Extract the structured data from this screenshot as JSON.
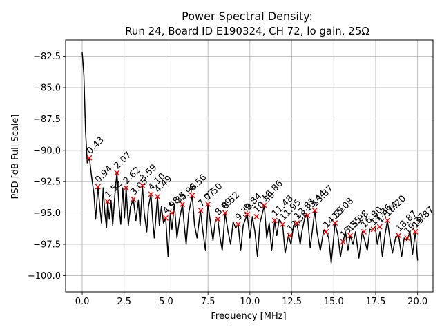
{
  "chart_data": {
    "type": "line",
    "title_line1": "Power Spectral Density:",
    "title_line2": "Run 24, Board ID E190324, CH 72, lo gain, 25Ω",
    "xlabel": "Frequency [MHz]",
    "ylabel": "PSD [dB Full Scale]",
    "xlim": [
      -0.99,
      20.92
    ],
    "ylim": [
      -101.3,
      -81.2
    ],
    "xticks": [
      0.0,
      2.5,
      5.0,
      7.5,
      10.0,
      12.5,
      15.0,
      17.5,
      20.0
    ],
    "xtick_labels": [
      "0.0",
      "2.5",
      "5.0",
      "7.5",
      "10.0",
      "12.5",
      "15.0",
      "17.5",
      "20.0"
    ],
    "yticks": [
      -82.5,
      -85.0,
      -87.5,
      -90.0,
      -92.5,
      -95.0,
      -97.5,
      -100.0
    ],
    "ytick_labels": [
      "−82.5",
      "−85.0",
      "−87.5",
      "−90.0",
      "−92.5",
      "−95.0",
      "−97.5",
      "−100.0"
    ],
    "grid": true,
    "line_color": "#000000",
    "marker_color": "#ff0000",
    "series": [
      {
        "x": [
          0.0,
          0.1,
          0.2,
          0.3,
          0.43,
          0.55,
          0.7,
          0.8,
          0.94,
          1.05,
          1.15,
          1.25,
          1.35,
          1.45,
          1.52,
          1.62,
          1.72,
          1.82,
          1.95,
          2.07,
          2.2,
          2.3,
          2.42,
          2.52,
          2.62,
          2.75,
          2.88,
          3.05,
          3.2,
          3.35,
          3.45,
          3.59,
          3.7,
          3.85,
          3.95,
          4.1,
          4.2,
          4.3,
          4.49,
          4.6,
          4.72,
          4.85,
          4.98,
          5.12,
          5.25,
          5.35,
          5.5,
          5.65,
          5.8,
          5.98,
          6.1,
          6.2,
          6.35,
          6.56,
          6.7,
          6.85,
          7.05,
          7.2,
          7.35,
          7.5,
          7.65,
          7.8,
          7.95,
          8.09,
          8.2,
          8.35,
          8.52,
          8.7,
          8.85,
          9.0,
          9.15,
          9.3,
          9.45,
          9.6,
          9.84,
          10.0,
          10.15,
          10.3,
          10.45,
          10.6,
          10.86,
          11.0,
          11.15,
          11.3,
          11.48,
          11.6,
          11.75,
          11.95,
          12.1,
          12.3,
          12.45,
          12.6,
          12.8,
          13.0,
          13.1,
          13.3,
          13.44,
          13.6,
          13.87,
          14.0,
          14.2,
          14.4,
          14.55,
          14.7,
          14.85,
          15.08,
          15.25,
          15.4,
          15.55,
          15.7,
          15.85,
          15.98,
          16.15,
          16.3,
          16.5,
          16.7,
          16.85,
          17.0,
          17.15,
          17.3,
          17.48,
          17.6,
          17.75,
          17.9,
          18.05,
          18.2,
          18.35,
          18.5,
          18.7,
          18.87,
          19.05,
          19.2,
          19.37,
          19.55,
          19.7,
          19.87,
          20.0
        ],
        "y": [
          -82.2,
          -84.0,
          -88.5,
          -91.0,
          -90.6,
          -92.0,
          -93.5,
          -95.5,
          -92.9,
          -94.5,
          -95.8,
          -93.0,
          -95.0,
          -96.2,
          -94.1,
          -95.5,
          -94.0,
          -96.0,
          -93.5,
          -91.8,
          -94.5,
          -95.9,
          -93.0,
          -95.4,
          -93.0,
          -96.0,
          -94.5,
          -93.9,
          -95.6,
          -94.0,
          -96.0,
          -92.8,
          -95.0,
          -96.5,
          -94.5,
          -93.5,
          -95.5,
          -97.0,
          -93.7,
          -96.0,
          -94.5,
          -95.8,
          -95.4,
          -98.5,
          -95.0,
          -96.3,
          -94.3,
          -97.0,
          -95.5,
          -94.3,
          -96.2,
          -97.5,
          -95.0,
          -93.6,
          -96.0,
          -97.0,
          -94.8,
          -96.5,
          -98.0,
          -94.3,
          -95.8,
          -97.2,
          -95.5,
          -95.5,
          -96.8,
          -98.0,
          -95.0,
          -96.5,
          -97.5,
          -95.7,
          -96.2,
          -95.9,
          -98.0,
          -96.0,
          -95.1,
          -97.0,
          -95.3,
          -96.5,
          -98.5,
          -95.8,
          -94.4,
          -97.0,
          -95.8,
          -98.0,
          -95.6,
          -96.8,
          -95.5,
          -95.9,
          -98.2,
          -96.8,
          -97.5,
          -96.0,
          -95.8,
          -97.5,
          -96.5,
          -95.2,
          -95.3,
          -97.8,
          -94.8,
          -96.5,
          -98.0,
          -96.4,
          -96.5,
          -97.0,
          -99.0,
          -95.8,
          -96.8,
          -98.5,
          -97.3,
          -96.5,
          -98.0,
          -96.8,
          -97.5,
          -96.5,
          -98.6,
          -96.5,
          -97.2,
          -98.0,
          -96.3,
          -96.4,
          -96.1,
          -97.5,
          -96.5,
          -98.5,
          -96.8,
          -95.6,
          -97.0,
          -98.2,
          -96.9,
          -96.8,
          -98.5,
          -97.0,
          -97.2,
          -96.5,
          -98.3,
          -96.5,
          -98.8
        ]
      }
    ],
    "peaks": [
      {
        "x": 0.43,
        "y": -90.6,
        "label": "0.43"
      },
      {
        "x": 0.94,
        "y": -92.9,
        "label": "0.94"
      },
      {
        "x": 1.52,
        "y": -94.1,
        "label": "1.52"
      },
      {
        "x": 2.07,
        "y": -91.8,
        "label": "2.07"
      },
      {
        "x": 2.62,
        "y": -93.0,
        "label": "2.62"
      },
      {
        "x": 3.05,
        "y": -93.9,
        "label": "3.05"
      },
      {
        "x": 3.59,
        "y": -92.8,
        "label": "3.59"
      },
      {
        "x": 4.1,
        "y": -93.5,
        "label": "4.10"
      },
      {
        "x": 4.49,
        "y": -93.7,
        "label": "4.49"
      },
      {
        "x": 4.98,
        "y": -95.4,
        "label": "4.98"
      },
      {
        "x": 5.35,
        "y": -95.0,
        "label": "5.35"
      },
      {
        "x": 5.98,
        "y": -94.3,
        "label": "5.98"
      },
      {
        "x": 6.56,
        "y": -93.6,
        "label": "6.56"
      },
      {
        "x": 7.07,
        "y": -94.8,
        "label": "7.07"
      },
      {
        "x": 7.5,
        "y": -94.3,
        "label": "7.50"
      },
      {
        "x": 8.09,
        "y": -95.5,
        "label": "8.09"
      },
      {
        "x": 8.52,
        "y": -95.0,
        "label": "8.52"
      },
      {
        "x": 9.3,
        "y": -95.9,
        "label": "9.30"
      },
      {
        "x": 9.84,
        "y": -95.1,
        "label": "9.84"
      },
      {
        "x": 10.39,
        "y": -95.3,
        "label": "10.39"
      },
      {
        "x": 10.86,
        "y": -94.4,
        "label": "10.86"
      },
      {
        "x": 11.48,
        "y": -95.6,
        "label": "11.48"
      },
      {
        "x": 11.95,
        "y": -95.9,
        "label": "11.95"
      },
      {
        "x": 12.38,
        "y": -96.8,
        "label": "12.38"
      },
      {
        "x": 12.81,
        "y": -95.8,
        "label": "12.81"
      },
      {
        "x": 13.44,
        "y": -95.2,
        "label": "13.44"
      },
      {
        "x": 13.87,
        "y": -94.8,
        "label": "13.87"
      },
      {
        "x": 14.55,
        "y": -96.5,
        "label": "14.55"
      },
      {
        "x": 15.08,
        "y": -95.8,
        "label": "15.08"
      },
      {
        "x": 15.55,
        "y": -97.3,
        "label": "15.55"
      },
      {
        "x": 15.98,
        "y": -96.8,
        "label": "15.98"
      },
      {
        "x": 16.8,
        "y": -96.5,
        "label": "16.80"
      },
      {
        "x": 17.36,
        "y": -96.3,
        "label": "17.36"
      },
      {
        "x": 17.74,
        "y": -96.1,
        "label": "17.74"
      },
      {
        "x": 18.2,
        "y": -95.6,
        "label": "18.20"
      },
      {
        "x": 18.87,
        "y": -96.8,
        "label": "18.87"
      },
      {
        "x": 19.37,
        "y": -97.0,
        "label": "19.37"
      },
      {
        "x": 19.87,
        "y": -96.5,
        "label": "19.87"
      }
    ]
  }
}
